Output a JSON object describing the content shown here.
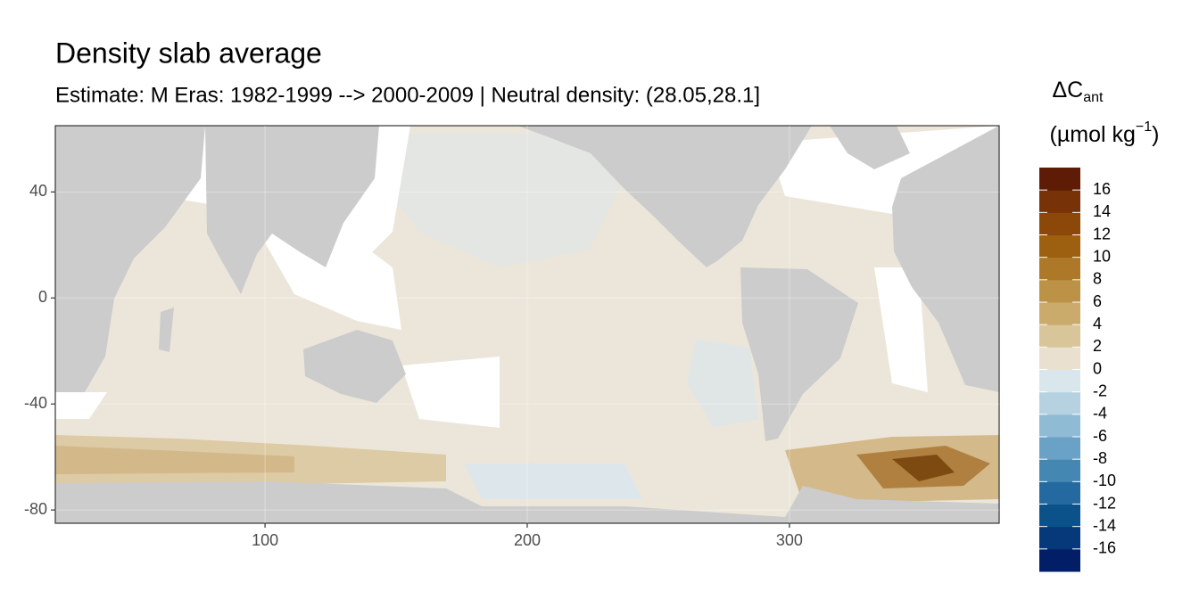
{
  "chart_data": {
    "type": "raster-map",
    "title": "Density slab average",
    "subtitle": "Estimate: M Eras: 1982-1999 --> 2000-2009 | Neutral density: (28.05,28.1]",
    "xlim": [
      20,
      380
    ],
    "ylim": [
      -85,
      65
    ],
    "xticks": [
      100,
      200,
      300
    ],
    "yticks": [
      40,
      0,
      -40,
      -80
    ],
    "grid": true,
    "legend": {
      "title": {
        "main": "ΔC",
        "sub": "ant"
      },
      "unit": {
        "before": "(µmol kg",
        "sup": "−1",
        "after": ")"
      },
      "limits": [
        -18,
        18
      ],
      "ticks": [
        -16,
        -14,
        -12,
        -10,
        -8,
        -6,
        -4,
        -2,
        0,
        2,
        4,
        6,
        8,
        10,
        12,
        14,
        16
      ],
      "colors": [
        "#011e66",
        "#05397a",
        "#0b528a",
        "#24699f",
        "#4587b3",
        "#69a2c6",
        "#8fbbd5",
        "#b6d2e1",
        "#d9e6ec",
        "#e9e0cf",
        "#d9c59a",
        "#cbab6c",
        "#bc9346",
        "#ad7928",
        "#9d5f10",
        "#8c4809",
        "#773207",
        "#5e1b05"
      ]
    }
  }
}
